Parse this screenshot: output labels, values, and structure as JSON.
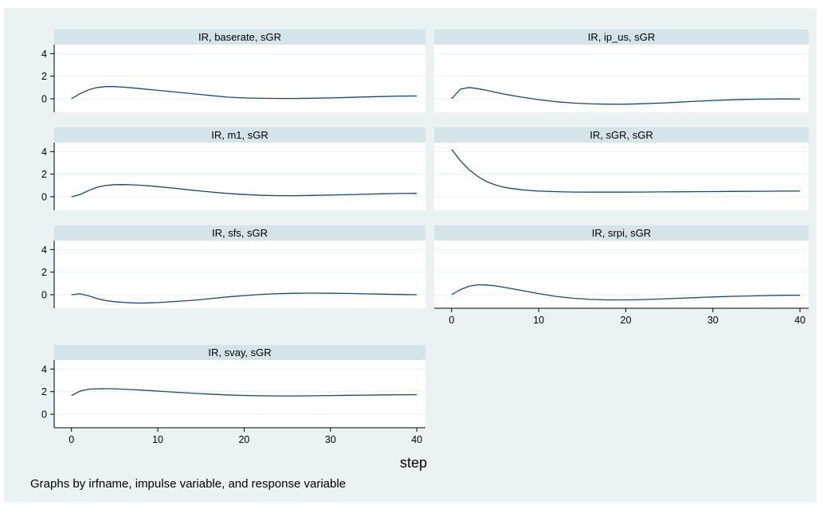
{
  "chart_data": {
    "type": "line",
    "xlabel": "step",
    "note": "Graphs by irfname, impulse variable, and response variable",
    "ylim": [
      -1.2,
      4.8
    ],
    "yticks": [
      0,
      2,
      4
    ],
    "xlim": [
      -2,
      41
    ],
    "xticks": [
      0,
      10,
      20,
      30,
      40
    ],
    "colors": {
      "background": "#eaf2f3",
      "plot": "#ffffff",
      "title_bar": "#d4e4e8",
      "line": "#1a476f",
      "grid": "#eaf2f3"
    },
    "grid": true,
    "panels": [
      {
        "title": "IR, baserate, sGR",
        "x": [
          0,
          1,
          2,
          3,
          4,
          5,
          6,
          7,
          8,
          9,
          10,
          12,
          14,
          16,
          18,
          20,
          22,
          24,
          26,
          28,
          30,
          32,
          34,
          36,
          38,
          40
        ],
        "y": [
          0,
          0.45,
          0.8,
          1.0,
          1.08,
          1.08,
          1.03,
          0.97,
          0.9,
          0.82,
          0.75,
          0.6,
          0.45,
          0.3,
          0.15,
          0.08,
          0.04,
          0.03,
          0.03,
          0.05,
          0.08,
          0.12,
          0.16,
          0.2,
          0.24,
          0.25
        ]
      },
      {
        "title": "IR, ip_us, sGR",
        "x": [
          0,
          1,
          2,
          3,
          4,
          5,
          6,
          8,
          10,
          12,
          14,
          16,
          18,
          20,
          22,
          24,
          26,
          28,
          30,
          32,
          34,
          36,
          38,
          40
        ],
        "y": [
          0,
          0.85,
          1.0,
          0.9,
          0.75,
          0.58,
          0.42,
          0.15,
          -0.08,
          -0.26,
          -0.38,
          -0.45,
          -0.48,
          -0.48,
          -0.44,
          -0.38,
          -0.3,
          -0.22,
          -0.15,
          -0.09,
          -0.05,
          -0.03,
          -0.01,
          -0.02
        ]
      },
      {
        "title": "IR, m1, sGR",
        "x": [
          0,
          1,
          2,
          3,
          4,
          5,
          6,
          7,
          8,
          9,
          10,
          12,
          14,
          16,
          18,
          20,
          22,
          24,
          26,
          28,
          30,
          32,
          34,
          36,
          38,
          40
        ],
        "y": [
          0,
          0.2,
          0.55,
          0.85,
          1.0,
          1.07,
          1.08,
          1.06,
          1.02,
          0.97,
          0.9,
          0.75,
          0.58,
          0.43,
          0.3,
          0.2,
          0.13,
          0.1,
          0.1,
          0.12,
          0.15,
          0.18,
          0.22,
          0.26,
          0.29,
          0.3
        ]
      },
      {
        "title": "IR, sGR, sGR",
        "x": [
          0,
          1,
          2,
          3,
          4,
          5,
          6,
          7,
          8,
          9,
          10,
          12,
          14,
          16,
          18,
          20,
          22,
          24,
          26,
          28,
          30,
          32,
          34,
          36,
          38,
          40
        ],
        "y": [
          4.2,
          3.2,
          2.4,
          1.8,
          1.35,
          1.05,
          0.85,
          0.72,
          0.62,
          0.55,
          0.5,
          0.45,
          0.42,
          0.41,
          0.41,
          0.41,
          0.42,
          0.43,
          0.44,
          0.45,
          0.46,
          0.47,
          0.48,
          0.49,
          0.5,
          0.5
        ]
      },
      {
        "title": "IR, sfs, sGR",
        "x": [
          0,
          1,
          2,
          3,
          4,
          5,
          6,
          7,
          8,
          9,
          10,
          12,
          14,
          16,
          18,
          20,
          22,
          24,
          26,
          28,
          30,
          32,
          34,
          36,
          38,
          40
        ],
        "y": [
          0,
          0.08,
          -0.1,
          -0.35,
          -0.52,
          -0.62,
          -0.68,
          -0.72,
          -0.74,
          -0.72,
          -0.7,
          -0.6,
          -0.5,
          -0.35,
          -0.2,
          -0.08,
          0.03,
          0.1,
          0.13,
          0.14,
          0.13,
          0.11,
          0.08,
          0.05,
          0.02,
          0.0
        ]
      },
      {
        "title": "IR, srpi, sGR",
        "x": [
          0,
          1,
          2,
          3,
          4,
          5,
          6,
          7,
          8,
          9,
          10,
          12,
          14,
          16,
          18,
          20,
          22,
          24,
          26,
          28,
          30,
          32,
          34,
          36,
          38,
          40
        ],
        "y": [
          0,
          0.45,
          0.75,
          0.88,
          0.86,
          0.78,
          0.66,
          0.52,
          0.38,
          0.24,
          0.1,
          -0.15,
          -0.32,
          -0.42,
          -0.46,
          -0.46,
          -0.43,
          -0.38,
          -0.32,
          -0.26,
          -0.2,
          -0.15,
          -0.11,
          -0.08,
          -0.05,
          -0.04
        ]
      },
      {
        "title": "IR, svay, sGR",
        "x": [
          0,
          1,
          2,
          3,
          4,
          5,
          6,
          7,
          8,
          9,
          10,
          12,
          14,
          16,
          18,
          20,
          22,
          24,
          26,
          28,
          30,
          32,
          34,
          36,
          38,
          40
        ],
        "y": [
          1.65,
          2.05,
          2.22,
          2.25,
          2.26,
          2.25,
          2.22,
          2.18,
          2.14,
          2.1,
          2.05,
          1.95,
          1.86,
          1.78,
          1.71,
          1.66,
          1.63,
          1.62,
          1.62,
          1.63,
          1.65,
          1.67,
          1.69,
          1.71,
          1.72,
          1.73
        ]
      }
    ]
  }
}
